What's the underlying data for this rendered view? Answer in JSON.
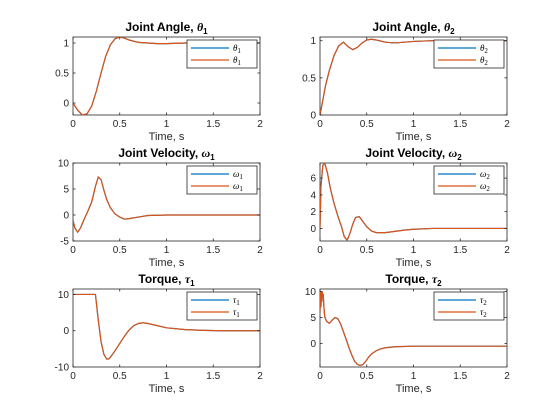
{
  "chart_data": [
    {
      "type": "line",
      "title": "Joint Angle, ",
      "title_symbol": "θ",
      "title_sub": "1",
      "xlabel": "Time, s",
      "ylabel": "",
      "xlim": [
        0,
        2
      ],
      "ylim": [
        -0.2,
        1.1
      ],
      "xticks": [
        "0",
        "0.5",
        "1",
        "1.5",
        "2"
      ],
      "xtick_values": [
        0,
        0.5,
        1,
        1.5,
        2
      ],
      "yticks": [
        "0",
        "0.5",
        "1"
      ],
      "ytick_values": [
        0,
        0.5,
        1
      ],
      "legend_position": "top-right",
      "grid": false,
      "series": [
        {
          "name": "θ1",
          "color": "#0072BD",
          "x": [
            0,
            0.05,
            0.1,
            0.15,
            0.2,
            0.25,
            0.3,
            0.35,
            0.4,
            0.45,
            0.5,
            0.55,
            0.6,
            0.7,
            0.8,
            0.9,
            1.0,
            1.2,
            1.4,
            1.6,
            1.8,
            2.0
          ],
          "y": [
            0,
            -0.12,
            -0.2,
            -0.18,
            -0.05,
            0.2,
            0.5,
            0.78,
            0.97,
            1.07,
            1.1,
            1.08,
            1.05,
            1.01,
            1.0,
            0.99,
            0.99,
            1.0,
            1.0,
            1.0,
            1.0,
            1.0
          ]
        },
        {
          "name": "θ1",
          "color": "#D95319",
          "x": [
            0,
            0.05,
            0.1,
            0.15,
            0.2,
            0.25,
            0.3,
            0.35,
            0.4,
            0.45,
            0.5,
            0.55,
            0.6,
            0.7,
            0.8,
            0.9,
            1.0,
            1.2,
            1.4,
            1.6,
            1.8,
            2.0
          ],
          "y": [
            0,
            -0.12,
            -0.2,
            -0.18,
            -0.05,
            0.2,
            0.5,
            0.78,
            0.97,
            1.07,
            1.1,
            1.08,
            1.05,
            1.01,
            1.0,
            0.99,
            0.99,
            1.0,
            1.0,
            1.0,
            1.0,
            1.0
          ]
        }
      ]
    },
    {
      "type": "line",
      "title": "Joint Angle, ",
      "title_symbol": "θ",
      "title_sub": "2",
      "xlabel": "Time, s",
      "ylabel": "",
      "xlim": [
        0,
        2
      ],
      "ylim": [
        0,
        1.05
      ],
      "xticks": [
        "0",
        "0.5",
        "1",
        "1.5",
        "2"
      ],
      "xtick_values": [
        0,
        0.5,
        1,
        1.5,
        2
      ],
      "yticks": [
        "0",
        "0.5",
        "1"
      ],
      "ytick_values": [
        0,
        0.5,
        1
      ],
      "legend_position": "top-right",
      "grid": false,
      "series": [
        {
          "name": "θ2",
          "color": "#0072BD",
          "x": [
            0,
            0.03,
            0.06,
            0.1,
            0.15,
            0.2,
            0.25,
            0.3,
            0.35,
            0.4,
            0.45,
            0.5,
            0.55,
            0.6,
            0.7,
            0.8,
            0.9,
            1.0,
            1.2,
            1.4,
            1.6,
            1.8,
            2.0
          ],
          "y": [
            0,
            0.2,
            0.4,
            0.6,
            0.8,
            0.93,
            0.98,
            0.92,
            0.88,
            0.91,
            0.97,
            1.01,
            1.02,
            1.01,
            0.98,
            0.97,
            0.98,
            0.99,
            1.0,
            1.0,
            1.0,
            1.0,
            1.0
          ]
        },
        {
          "name": "θ2",
          "color": "#D95319",
          "x": [
            0,
            0.03,
            0.06,
            0.1,
            0.15,
            0.2,
            0.25,
            0.3,
            0.35,
            0.4,
            0.45,
            0.5,
            0.55,
            0.6,
            0.7,
            0.8,
            0.9,
            1.0,
            1.2,
            1.4,
            1.6,
            1.8,
            2.0
          ],
          "y": [
            0,
            0.2,
            0.4,
            0.6,
            0.8,
            0.93,
            0.98,
            0.92,
            0.88,
            0.91,
            0.97,
            1.01,
            1.02,
            1.01,
            0.98,
            0.97,
            0.98,
            0.99,
            1.0,
            1.0,
            1.0,
            1.0,
            1.0
          ]
        }
      ]
    },
    {
      "type": "line",
      "title": "Joint Velocity, ",
      "title_symbol": "ω",
      "title_sub": "1",
      "xlabel": "Time, s",
      "ylabel": "",
      "xlim": [
        0,
        2
      ],
      "ylim": [
        -5,
        10
      ],
      "xticks": [
        "0",
        "0.5",
        "1",
        "1.5",
        "2"
      ],
      "xtick_values": [
        0,
        0.5,
        1,
        1.5,
        2
      ],
      "yticks": [
        "-5",
        "0",
        "5",
        "10"
      ],
      "ytick_values": [
        -5,
        0,
        5,
        10
      ],
      "legend_position": "top-right",
      "grid": false,
      "series": [
        {
          "name": "ω1",
          "color": "#0072BD",
          "x": [
            0,
            0.02,
            0.05,
            0.08,
            0.12,
            0.16,
            0.2,
            0.24,
            0.27,
            0.3,
            0.33,
            0.36,
            0.4,
            0.45,
            0.5,
            0.55,
            0.6,
            0.7,
            0.8,
            1.0,
            1.2,
            1.5,
            1.8,
            2.0
          ],
          "y": [
            -1,
            -2.5,
            -3.3,
            -2.5,
            -0.8,
            0.8,
            2.5,
            5.5,
            7.3,
            6.8,
            4.8,
            3.0,
            1.4,
            0.2,
            -0.4,
            -0.8,
            -0.7,
            -0.4,
            -0.1,
            0,
            0,
            0,
            0,
            0
          ]
        },
        {
          "name": "ω1",
          "color": "#D95319",
          "x": [
            0,
            0.02,
            0.05,
            0.08,
            0.12,
            0.16,
            0.2,
            0.24,
            0.27,
            0.3,
            0.33,
            0.36,
            0.4,
            0.45,
            0.5,
            0.55,
            0.6,
            0.7,
            0.8,
            1.0,
            1.2,
            1.5,
            1.8,
            2.0
          ],
          "y": [
            -1,
            -2.5,
            -3.3,
            -2.5,
            -0.8,
            0.8,
            2.5,
            5.5,
            7.3,
            6.8,
            4.8,
            3.0,
            1.4,
            0.2,
            -0.4,
            -0.8,
            -0.7,
            -0.4,
            -0.1,
            0,
            0,
            0,
            0,
            0
          ]
        }
      ]
    },
    {
      "type": "line",
      "title": "Joint Velocity, ",
      "title_symbol": "ω",
      "title_sub": "2",
      "xlabel": "Time, s",
      "ylabel": "",
      "xlim": [
        0,
        2
      ],
      "ylim": [
        -1.5,
        7.8
      ],
      "xticks": [
        "0",
        "0.5",
        "1",
        "1.5",
        "2"
      ],
      "xtick_values": [
        0,
        0.5,
        1,
        1.5,
        2
      ],
      "yticks": [
        "0",
        "2",
        "4",
        "6"
      ],
      "ytick_values": [
        0,
        2,
        4,
        6
      ],
      "legend_position": "top-right",
      "grid": false,
      "series": [
        {
          "name": "ω2",
          "color": "#0072BD",
          "x": [
            0,
            0.01,
            0.03,
            0.05,
            0.08,
            0.11,
            0.15,
            0.19,
            0.23,
            0.26,
            0.29,
            0.32,
            0.35,
            0.38,
            0.42,
            0.46,
            0.5,
            0.55,
            0.6,
            0.7,
            0.8,
            0.9,
            1.0,
            1.2,
            1.5,
            2.0
          ],
          "y": [
            0,
            5,
            7.5,
            7.8,
            6.6,
            4.8,
            3.0,
            1.5,
            0.2,
            -1.0,
            -1.4,
            -0.6,
            0.5,
            1.3,
            1.4,
            0.8,
            0.2,
            -0.3,
            -0.5,
            -0.5,
            -0.35,
            -0.2,
            -0.1,
            0,
            0,
            0
          ]
        },
        {
          "name": "ω2",
          "color": "#D95319",
          "x": [
            0,
            0.01,
            0.03,
            0.05,
            0.08,
            0.11,
            0.15,
            0.19,
            0.23,
            0.26,
            0.29,
            0.32,
            0.35,
            0.38,
            0.42,
            0.46,
            0.5,
            0.55,
            0.6,
            0.7,
            0.8,
            0.9,
            1.0,
            1.2,
            1.5,
            2.0
          ],
          "y": [
            0,
            5,
            7.5,
            7.8,
            6.6,
            4.8,
            3.0,
            1.5,
            0.2,
            -1.0,
            -1.4,
            -0.6,
            0.5,
            1.3,
            1.4,
            0.8,
            0.2,
            -0.3,
            -0.5,
            -0.5,
            -0.35,
            -0.2,
            -0.1,
            0,
            0,
            0
          ]
        }
      ]
    },
    {
      "type": "line",
      "title": "Torque, ",
      "title_symbol": "τ",
      "title_sub": "1",
      "xlabel": "Time, s",
      "ylabel": "",
      "xlim": [
        0,
        2
      ],
      "ylim": [
        -10,
        11.5
      ],
      "xticks": [
        "0",
        "0.5",
        "1",
        "1.5",
        "2"
      ],
      "xtick_values": [
        0,
        0.5,
        1,
        1.5,
        2
      ],
      "yticks": [
        "-10",
        "0",
        "10"
      ],
      "ytick_values": [
        -10,
        0,
        10
      ],
      "legend_position": "top-right",
      "grid": false,
      "series": [
        {
          "name": "τ1",
          "color": "#0072BD",
          "x": [
            0,
            0.05,
            0.1,
            0.15,
            0.2,
            0.22,
            0.24,
            0.27,
            0.3,
            0.33,
            0.36,
            0.38,
            0.4,
            0.45,
            0.5,
            0.55,
            0.6,
            0.65,
            0.7,
            0.75,
            0.8,
            0.9,
            1.0,
            1.2,
            1.4,
            1.6,
            1.8,
            2.0
          ],
          "y": [
            10,
            10,
            10,
            10,
            10,
            10,
            10,
            3.0,
            -3.0,
            -6.5,
            -7.8,
            -7.8,
            -7.3,
            -5.5,
            -3.5,
            -1.5,
            0.2,
            1.4,
            2.0,
            2.2,
            2.0,
            1.4,
            0.8,
            0.3,
            0.1,
            0,
            0,
            0
          ]
        },
        {
          "name": "τ1",
          "color": "#D95319",
          "x": [
            0,
            0.05,
            0.1,
            0.15,
            0.2,
            0.22,
            0.24,
            0.27,
            0.3,
            0.33,
            0.36,
            0.38,
            0.4,
            0.45,
            0.5,
            0.55,
            0.6,
            0.65,
            0.7,
            0.75,
            0.8,
            0.9,
            1.0,
            1.2,
            1.4,
            1.6,
            1.8,
            2.0
          ],
          "y": [
            10,
            10,
            10,
            10,
            10,
            10,
            10,
            3.0,
            -3.0,
            -6.5,
            -7.8,
            -7.8,
            -7.3,
            -5.5,
            -3.5,
            -1.5,
            0.2,
            1.4,
            2.0,
            2.2,
            2.0,
            1.4,
            0.8,
            0.3,
            0.1,
            0,
            0,
            0
          ]
        }
      ]
    },
    {
      "type": "line",
      "title": "Torque, ",
      "title_symbol": "τ",
      "title_sub": "2",
      "xlabel": "Time, s",
      "ylabel": "",
      "xlim": [
        0,
        2
      ],
      "ylim": [
        -4.5,
        10.5
      ],
      "xticks": [
        "0",
        "0.5",
        "1",
        "1.5",
        "2"
      ],
      "xtick_values": [
        0,
        0.5,
        1,
        1.5,
        2
      ],
      "yticks": [
        "0",
        "5",
        "10"
      ],
      "ytick_values": [
        0,
        5,
        10
      ],
      "legend_position": "top-right",
      "grid": false,
      "series": [
        {
          "name": "τ2",
          "color": "#0072BD",
          "x": [
            0,
            0.005,
            0.01,
            0.015,
            0.02,
            0.025,
            0.03,
            0.035,
            0.04,
            0.05,
            0.07,
            0.1,
            0.13,
            0.16,
            0.19,
            0.22,
            0.25,
            0.28,
            0.31,
            0.34,
            0.37,
            0.4,
            0.43,
            0.46,
            0.49,
            0.52,
            0.55,
            0.6,
            0.65,
            0.7,
            0.8,
            1.0,
            1.5,
            2.0
          ],
          "y": [
            6,
            10,
            7,
            10,
            8,
            10,
            9,
            9.5,
            7.5,
            5.2,
            4.3,
            3.9,
            4.5,
            5.0,
            4.8,
            3.8,
            2.3,
            0.8,
            -0.8,
            -2.2,
            -3.4,
            -4.0,
            -4.2,
            -4.0,
            -3.4,
            -2.6,
            -2.0,
            -1.4,
            -1.0,
            -0.8,
            -0.6,
            -0.5,
            -0.5,
            -0.5
          ]
        },
        {
          "name": "τ2",
          "color": "#D95319",
          "x": [
            0,
            0.005,
            0.01,
            0.015,
            0.02,
            0.025,
            0.03,
            0.035,
            0.04,
            0.05,
            0.07,
            0.1,
            0.13,
            0.16,
            0.19,
            0.22,
            0.25,
            0.28,
            0.31,
            0.34,
            0.37,
            0.4,
            0.43,
            0.46,
            0.49,
            0.52,
            0.55,
            0.6,
            0.65,
            0.7,
            0.8,
            1.0,
            1.5,
            2.0
          ],
          "y": [
            6,
            10,
            7,
            10,
            8,
            10,
            9,
            9.5,
            7.5,
            5.2,
            4.3,
            3.9,
            4.5,
            5.0,
            4.8,
            3.8,
            2.3,
            0.8,
            -0.8,
            -2.2,
            -3.4,
            -4.0,
            -4.2,
            -4.0,
            -3.4,
            -2.6,
            -2.0,
            -1.4,
            -1.0,
            -0.8,
            -0.6,
            -0.5,
            -0.5,
            -0.5
          ]
        }
      ]
    }
  ]
}
